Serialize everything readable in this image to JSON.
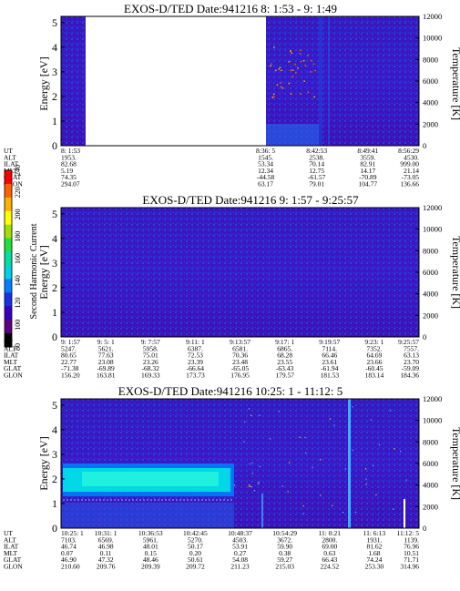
{
  "panels": [
    {
      "title": "EXOS-D/TED   Date:941216  8: 1:53 - 9: 1:49",
      "ylabel": "Energy [eV]",
      "y2label": "Temperature [K]",
      "yticks": [
        "0",
        "1",
        "2",
        "3",
        "4",
        "5"
      ],
      "y2ticks": [
        "0",
        "2000",
        "4000",
        "6000",
        "8000",
        "10000",
        "12000"
      ],
      "gap": [
        0.1,
        0.5
      ],
      "orbit_rows": [
        {
          "label": "UT",
          "values": [
            "8: 1:53",
            "",
            "",
            "",
            "8:36: 5",
            "8:42:53",
            "8:49:41",
            "8:56:29"
          ]
        },
        {
          "label": "ALT",
          "values": [
            "1953.",
            "",
            "",
            "",
            "1545.",
            "2538.",
            "3559.",
            "4530."
          ]
        },
        {
          "label": "ILAT",
          "values": [
            "82.68",
            "",
            "",
            "",
            "53.34",
            "70.14",
            "82.91",
            "999.00"
          ]
        },
        {
          "label": "MLT",
          "values": [
            "5.19",
            "",
            "",
            "",
            "12.34",
            "12.75",
            "14.17",
            "21.14"
          ]
        },
        {
          "label": "GLAT",
          "values": [
            "74.35",
            "",
            "",
            "",
            "-44.58",
            "-61.57",
            "-70.89",
            "-73.05"
          ]
        },
        {
          "label": "GLON",
          "values": [
            "294.07",
            "",
            "",
            "",
            "63.17",
            "79.01",
            "104.77",
            "136.66"
          ]
        }
      ]
    },
    {
      "title": "EXOS-D/TED   Date:941216  9: 1:57 - 9:25:57",
      "ylabel": "Energy [eV]",
      "y2label": "Temperature [K]",
      "yticks": [
        "0",
        "1",
        "2",
        "3",
        "4",
        "5"
      ],
      "y2ticks": [
        "0",
        "2000",
        "4000",
        "6000",
        "8000",
        "10000",
        "12000"
      ],
      "orbit_rows": [
        {
          "label": "UT",
          "values": [
            "9: 1:57",
            "9: 5: 1",
            "9: 7:57",
            "9:11: 1",
            "9:13:57",
            "9:17: 1",
            "9:19:57",
            "9:23: 1",
            "9:25:57"
          ]
        },
        {
          "label": "ALT",
          "values": [
            "5247.",
            "5621.",
            "5958.",
            "6387.",
            "6581.",
            "6865.",
            "7114.",
            "7352.",
            "7557."
          ]
        },
        {
          "label": "ILAT",
          "values": [
            "80.65",
            "77.63",
            "75.01",
            "72.53",
            "70.36",
            "68.28",
            "66.46",
            "64.69",
            "63.13"
          ]
        },
        {
          "label": "MLT",
          "values": [
            "22.77",
            "23.08",
            "23.26",
            "23.39",
            "23.48",
            "23.55",
            "23.61",
            "23.66",
            "23.70"
          ]
        },
        {
          "label": "GLAT",
          "values": [
            "-71.38",
            "-69.89",
            "-68.32",
            "-66.64",
            "-65.05",
            "-63.43",
            "-61.94",
            "-60.45",
            "-59.09"
          ]
        },
        {
          "label": "GLON",
          "values": [
            "156.20",
            "163.81",
            "169.33",
            "173.73",
            "176.95",
            "179.57",
            "181.53",
            "183.14",
            "184.36"
          ]
        }
      ]
    },
    {
      "title": "EXOS-D/TED   Date:941216  10:25: 1 - 11:12: 5",
      "ylabel": "Energy [eV]",
      "y2label": "Temperature [K]",
      "yticks": [
        "0",
        "1",
        "2",
        "3",
        "4",
        "5"
      ],
      "y2ticks": [
        "0",
        "2000",
        "4000",
        "6000",
        "8000",
        "10000",
        "12000"
      ],
      "orbit_rows": [
        {
          "label": "UT",
          "values": [
            "10:25: 1",
            "10:31: 1",
            "10:36:53",
            "10:42:45",
            "10:48:37",
            "10:54:29",
            "11: 0:21",
            "11: 6:13",
            "11:12: 5"
          ]
        },
        {
          "label": "ALT",
          "values": [
            "7103.",
            "6569.",
            "5961.",
            "5270.",
            "4503.",
            "3672.",
            "2800.",
            "1931.",
            "1139."
          ]
        },
        {
          "label": "ILAT",
          "values": [
            "46.74",
            "46.98",
            "48.01",
            "50.17",
            "53.91",
            "59.90",
            "69.00",
            "81.62",
            "76.96"
          ]
        },
        {
          "label": "MLT",
          "values": [
            "0.07",
            "0.11",
            "0.15",
            "0.20",
            "0.27",
            "0.38",
            "0.63",
            "1.68",
            "10.51"
          ]
        },
        {
          "label": "GLAT",
          "values": [
            "46.90",
            "47.32",
            "48.46",
            "50.61",
            "54.08",
            "59.27",
            "66.43",
            "74.24",
            "71.71"
          ]
        },
        {
          "label": "GLON",
          "values": [
            "210.60",
            "209.76",
            "209.39",
            "209.72",
            "211.23",
            "215.03",
            "224.52",
            "253.30",
            "314.96"
          ]
        }
      ]
    }
  ],
  "colorbar": {
    "label": "Second Harmonic Current",
    "ticks": [
      "80",
      "100",
      "120",
      "140",
      "160",
      "180",
      "200",
      "220",
      "240"
    ],
    "colors": [
      "#000000",
      "#5c0080",
      "#3a00c0",
      "#1c30e8",
      "#0080ff",
      "#00d0e0",
      "#00e0a0",
      "#20e040",
      "#a0e000",
      "#ffff00",
      "#ffb000",
      "#ff6000",
      "#ff0000"
    ]
  },
  "chart_data": [
    {
      "type": "heatmap",
      "title": "EXOS-D/TED   Date:941216  8: 1:53 - 9: 1:49",
      "ylabel": "Energy [eV]",
      "ylim": [
        0,
        5
      ],
      "y2label": "Temperature [K]",
      "y2lim": [
        0,
        12000
      ],
      "x_ticks": [
        "8: 1:53",
        "8:36: 5",
        "8:42:53",
        "8:49:41",
        "8:56:29"
      ]
    },
    {
      "type": "heatmap",
      "title": "EXOS-D/TED   Date:941216  9: 1:57 - 9:25:57",
      "ylabel": "Energy [eV]",
      "ylim": [
        0,
        5
      ],
      "y2label": "Temperature [K]",
      "y2lim": [
        0,
        12000
      ],
      "x_ticks": [
        "9: 1:57",
        "9: 5: 1",
        "9: 7:57",
        "9:11: 1",
        "9:13:57",
        "9:17: 1",
        "9:19:57",
        "9:23: 1",
        "9:25:57"
      ]
    },
    {
      "type": "heatmap",
      "title": "EXOS-D/TED   Date:941216  10:25: 1 - 11:12: 5",
      "ylabel": "Energy [eV]",
      "ylim": [
        0,
        5
      ],
      "y2label": "Temperature [K]",
      "y2lim": [
        0,
        12000
      ],
      "x_ticks": [
        "10:25: 1",
        "10:31: 1",
        "10:36:53",
        "10:42:45",
        "10:48:37",
        "10:54:29",
        "11: 0:21",
        "11: 6:13",
        "11:12: 5"
      ]
    }
  ]
}
